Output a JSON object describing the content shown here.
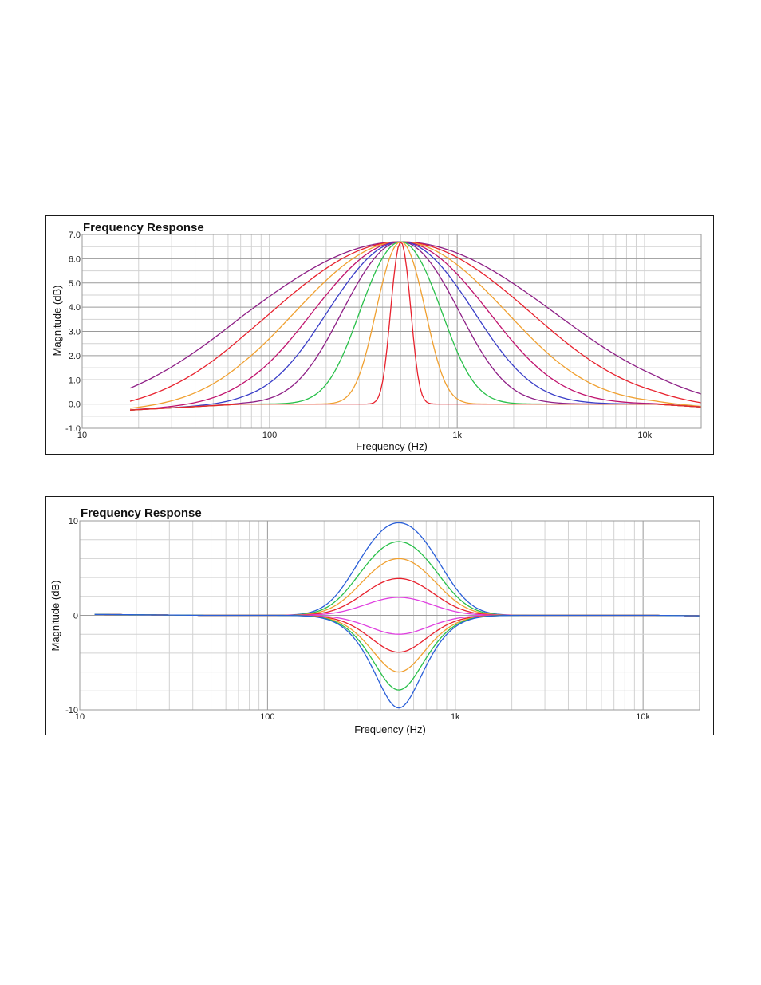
{
  "chart_data": [
    {
      "type": "line",
      "title": "Frequency Response",
      "xlabel": "Frequency (Hz)",
      "ylabel": "Magnitude (dB)",
      "x_scale": "log",
      "xlim": [
        10,
        20000
      ],
      "ylim": [
        -1.0,
        7.0
      ],
      "x_ticks": [
        10,
        100,
        1000,
        10000
      ],
      "x_tick_labels": [
        "10",
        "100",
        "1k",
        "10k"
      ],
      "y_ticks": [
        -1,
        0,
        1,
        2,
        3,
        4,
        5,
        6,
        7
      ],
      "y_tick_labels": [
        "-1.0",
        "0.0",
        "1.0",
        "2.0",
        "3.0",
        "4.0",
        "5.0",
        "6.0",
        "7.0"
      ],
      "grid": true,
      "series": [
        {
          "color": "#8e1f86",
          "gain_db": 6.7,
          "center_hz": 500,
          "bandwidth_oct": 5.2
        },
        {
          "color": "#e8222e",
          "gain_db": 6.7,
          "center_hz": 500,
          "bandwidth_oct": 4.4
        },
        {
          "color": "#f0a030",
          "gain_db": 6.7,
          "center_hz": 500,
          "bandwidth_oct": 3.6
        },
        {
          "color": "#c0136e",
          "gain_db": 6.7,
          "center_hz": 500,
          "bandwidth_oct": 3.0
        },
        {
          "color": "#3a3ec8",
          "gain_db": 6.7,
          "center_hz": 500,
          "bandwidth_oct": 2.5
        },
        {
          "color": "#8e1f86",
          "gain_db": 6.7,
          "center_hz": 500,
          "bandwidth_oct": 2.0
        },
        {
          "color": "#29c04a",
          "gain_db": 6.7,
          "center_hz": 500,
          "bandwidth_oct": 1.4
        },
        {
          "color": "#f0a030",
          "gain_db": 6.7,
          "center_hz": 500,
          "bandwidth_oct": 0.85
        },
        {
          "color": "#e8222e",
          "gain_db": 6.7,
          "center_hz": 500,
          "bandwidth_oct": 0.35
        }
      ]
    },
    {
      "type": "line",
      "title": "Frequency Response",
      "xlabel": "Frequency (Hz)",
      "ylabel": "Magnitude (dB)",
      "x_scale": "log",
      "xlim": [
        10,
        20000
      ],
      "ylim": [
        -10,
        10
      ],
      "x_ticks": [
        10,
        100,
        1000,
        10000
      ],
      "x_tick_labels": [
        "10",
        "100",
        "1k",
        "10k"
      ],
      "y_ticks": [
        -10,
        0,
        10
      ],
      "y_tick_labels": [
        "-10",
        "0",
        "10"
      ],
      "grid": true,
      "series": [
        {
          "color": "#2a5fd8",
          "gain_db": 9.8,
          "center_hz": 500,
          "bandwidth_oct": 1.3
        },
        {
          "color": "#29c04a",
          "gain_db": 7.8,
          "center_hz": 500,
          "bandwidth_oct": 1.3
        },
        {
          "color": "#f0a030",
          "gain_db": 6.0,
          "center_hz": 500,
          "bandwidth_oct": 1.3
        },
        {
          "color": "#e8222e",
          "gain_db": 3.9,
          "center_hz": 500,
          "bandwidth_oct": 1.3
        },
        {
          "color": "#e040e0",
          "gain_db": 1.9,
          "center_hz": 500,
          "bandwidth_oct": 1.3
        },
        {
          "color": "#e040e0",
          "gain_db": -2.0,
          "center_hz": 500,
          "bandwidth_oct": 1.3
        },
        {
          "color": "#e8222e",
          "gain_db": -3.9,
          "center_hz": 500,
          "bandwidth_oct": 1.3
        },
        {
          "color": "#f0a030",
          "gain_db": -6.0,
          "center_hz": 500,
          "bandwidth_oct": 1.3
        },
        {
          "color": "#29c04a",
          "gain_db": -7.9,
          "center_hz": 500,
          "bandwidth_oct": 1.3
        },
        {
          "color": "#2a5fd8",
          "gain_db": -9.8,
          "center_hz": 500,
          "bandwidth_oct": 1.3
        }
      ]
    }
  ]
}
